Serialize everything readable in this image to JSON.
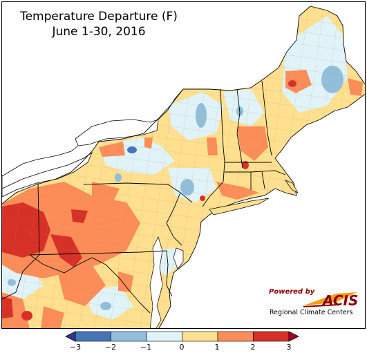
{
  "title": "Temperature Departure (F)",
  "subtitle": "June 1-30, 2016",
  "credit": {
    "powered_by": "Powered by",
    "brand": "ACIS",
    "organization": "Regional Climate Centers"
  },
  "legend": {
    "ticks": [
      "−3",
      "−2",
      "−1",
      "0",
      "1",
      "2",
      "3"
    ],
    "colors": [
      "#4575b4",
      "#91bfdb",
      "#e0f3f8",
      "#fee090",
      "#fc8d59",
      "#d73027"
    ]
  },
  "palette": {
    "water": "#ffffff",
    "outside": "#ffffff",
    "land_base": "#fee090",
    "border": "#000000",
    "county_line": "#b08a5a"
  }
}
